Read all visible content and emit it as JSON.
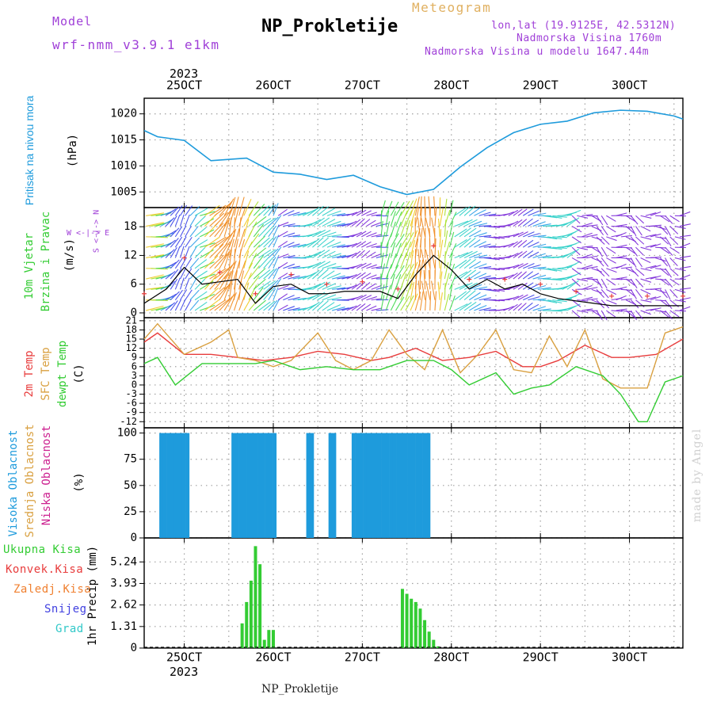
{
  "header": {
    "model_label": "Model",
    "model_name": "wrf-nmm_v3.9.1 e1km",
    "title": "NP_Prokletije",
    "subtitle": "Meteogram",
    "coords": "lon,lat (19.9125E, 42.5312N)",
    "elevation": "Nadmorska Visina 1760m",
    "model_elevation": "Nadmorska Visina u modelu 1647.44m",
    "footer": "NP_Prokletije",
    "signature": "made by Angel"
  },
  "colors": {
    "pressure": "#1e9bdc",
    "wind_speed": "#000000",
    "gust_marker": "#e83c3c",
    "temp_2m": "#e83c3c",
    "temp_sfc": "#d9a040",
    "dewpoint": "#33cc33",
    "cloud_high": "#1e9bdc",
    "cloud_mid": "#d9a040",
    "cloud_low": "#cc1f8f",
    "precip_total": "#33cc33",
    "precip_conv": "#e83c3c",
    "precip_frozen": "#f08030",
    "snow": "#4040e0",
    "hail": "#30c8c8"
  },
  "chart_data": [
    {
      "type": "line",
      "name": "pressure",
      "ylabel": "Pritisak na nivou mora",
      "unit": "(hPa)",
      "top_axis_year": "2023",
      "x_labels": [
        "25OCT",
        "26OCT",
        "27OCT",
        "28OCT",
        "29OCT",
        "30OCT"
      ],
      "ylim": [
        1002,
        1023
      ],
      "y_ticks": [
        1005,
        1010,
        1015,
        1020
      ],
      "x_days": [
        24.55,
        24.7,
        25.0,
        25.3,
        25.7,
        26.0,
        26.3,
        26.6,
        26.9,
        27.2,
        27.5,
        27.8,
        28.1,
        28.4,
        28.7,
        29.0,
        29.3,
        29.6,
        29.9,
        30.2,
        30.5,
        30.6
      ],
      "values": [
        1016.8,
        1015.6,
        1014.9,
        1011.0,
        1011.5,
        1008.8,
        1008.4,
        1007.4,
        1008.2,
        1006.0,
        1004.5,
        1005.5,
        1009.8,
        1013.5,
        1016.4,
        1018.0,
        1018.6,
        1020.2,
        1020.7,
        1020.5,
        1019.6,
        1019.0
      ]
    },
    {
      "type": "line",
      "name": "wind",
      "ylabel": "10m Vjetar Brzina i Pravac",
      "unit": "(m/s)",
      "compass": {
        "n": "N",
        "s": "S",
        "e": "E",
        "w": "W"
      },
      "ylim": [
        -1,
        22
      ],
      "y_ticks": [
        0,
        6,
        12,
        18
      ],
      "x_days": [
        24.55,
        24.8,
        25.0,
        25.2,
        25.4,
        25.6,
        25.8,
        26.0,
        26.2,
        26.4,
        26.6,
        26.8,
        27.0,
        27.2,
        27.4,
        27.6,
        27.8,
        28.0,
        28.2,
        28.4,
        28.6,
        28.8,
        29.0,
        29.2,
        29.4,
        29.6,
        29.8,
        30.0,
        30.2,
        30.4,
        30.6
      ],
      "values": [
        2.0,
        5.0,
        9.5,
        6.0,
        6.5,
        7.0,
        2.0,
        5.5,
        6.0,
        4.0,
        4.0,
        4.5,
        4.5,
        4.5,
        3.0,
        8.0,
        12.0,
        9.0,
        5.0,
        7.0,
        5.0,
        6.0,
        4.0,
        3.0,
        2.5,
        2.0,
        1.5,
        1.5,
        1.5,
        1.5,
        1.5
      ]
    },
    {
      "type": "line",
      "name": "temperature",
      "ylabel": "2m Temp, SFC Temp, dewpt Temp",
      "unit": "(C)",
      "ylim": [
        -14,
        22
      ],
      "y_ticks": [
        -12,
        -9,
        -6,
        -3,
        0,
        3,
        6,
        9,
        12,
        15,
        18,
        21
      ],
      "series": [
        {
          "name": "2m Temp",
          "x_days": [
            24.55,
            24.7,
            25.0,
            25.3,
            25.6,
            25.9,
            26.2,
            26.5,
            26.8,
            27.1,
            27.3,
            27.6,
            27.9,
            28.2,
            28.5,
            28.8,
            29.0,
            29.2,
            29.5,
            29.8,
            30.0,
            30.3,
            30.6
          ],
          "values": [
            14,
            17,
            10,
            10,
            9,
            8,
            9,
            11,
            10,
            8,
            9,
            12,
            8,
            9,
            11,
            6,
            6,
            8,
            13,
            9,
            9,
            10,
            15
          ]
        },
        {
          "name": "SFC Temp",
          "x_days": [
            24.55,
            24.7,
            25.0,
            25.3,
            25.5,
            25.6,
            25.8,
            26.0,
            26.2,
            26.5,
            26.7,
            26.9,
            27.1,
            27.3,
            27.5,
            27.7,
            27.9,
            28.1,
            28.3,
            28.5,
            28.7,
            28.9,
            29.1,
            29.3,
            29.5,
            29.7,
            29.9,
            30.0,
            30.2,
            30.4,
            30.6
          ],
          "values": [
            15,
            20,
            10,
            14,
            18,
            9,
            8,
            6,
            8,
            17,
            8,
            5,
            8,
            18,
            10,
            5,
            18,
            4,
            10,
            18,
            5,
            4,
            16,
            6,
            18,
            2,
            -1,
            -1,
            -1,
            17,
            19
          ]
        },
        {
          "name": "dewpt Temp",
          "x_days": [
            24.55,
            24.7,
            24.9,
            25.2,
            25.5,
            25.8,
            26.0,
            26.3,
            26.6,
            26.9,
            27.2,
            27.5,
            27.8,
            28.0,
            28.2,
            28.5,
            28.7,
            28.9,
            29.1,
            29.4,
            29.7,
            29.9,
            30.1,
            30.2,
            30.4,
            30.6
          ],
          "values": [
            7,
            9,
            0,
            7,
            7,
            7,
            8,
            5,
            6,
            5,
            5,
            8,
            8,
            5,
            0,
            4,
            -3,
            -1,
            0,
            6,
            3,
            -3,
            -12,
            -12,
            1,
            3
          ]
        }
      ]
    },
    {
      "type": "bar",
      "name": "cloud",
      "ylabel": "Visoka Oblacnost, Srednja Oblacnost, Niska Oblacnost",
      "unit": "(%)",
      "ylim": [
        0,
        105
      ],
      "y_ticks": [
        0,
        25,
        50,
        75,
        100
      ],
      "high_cloud_periods": [
        [
          24.72,
          25.04
        ],
        [
          25.53,
          26.0
        ],
        [
          26.37,
          26.43
        ],
        [
          26.62,
          26.7
        ],
        [
          26.88,
          27.74
        ]
      ],
      "high_cloud_percent": 100
    },
    {
      "type": "bar",
      "name": "precipitation",
      "ylabel": "1hr Precip",
      "unit": "(mm)",
      "legend": [
        "Ukupna Kisa",
        "Konvek.Kisa",
        "Zaledj.Kisa",
        "Snijeg",
        "Grad"
      ],
      "ylim": [
        0,
        6.7
      ],
      "y_ticks": [
        0,
        1.31,
        2.62,
        3.93,
        5.24
      ],
      "bottom_axis_year": "2023",
      "x_labels": [
        "25OCT",
        "26OCT",
        "27OCT",
        "28OCT",
        "29OCT",
        "30OCT"
      ],
      "x_days": [
        25.65,
        25.7,
        25.75,
        25.8,
        25.85,
        25.9,
        25.95,
        26.0,
        27.45,
        27.5,
        27.55,
        27.6,
        27.65,
        27.7,
        27.75,
        27.8,
        27.85
      ],
      "values": [
        1.5,
        2.8,
        4.1,
        6.2,
        5.1,
        0.5,
        1.1,
        1.1,
        3.6,
        3.3,
        3.0,
        2.8,
        2.4,
        1.7,
        1.0,
        0.5,
        0.1
      ]
    }
  ]
}
